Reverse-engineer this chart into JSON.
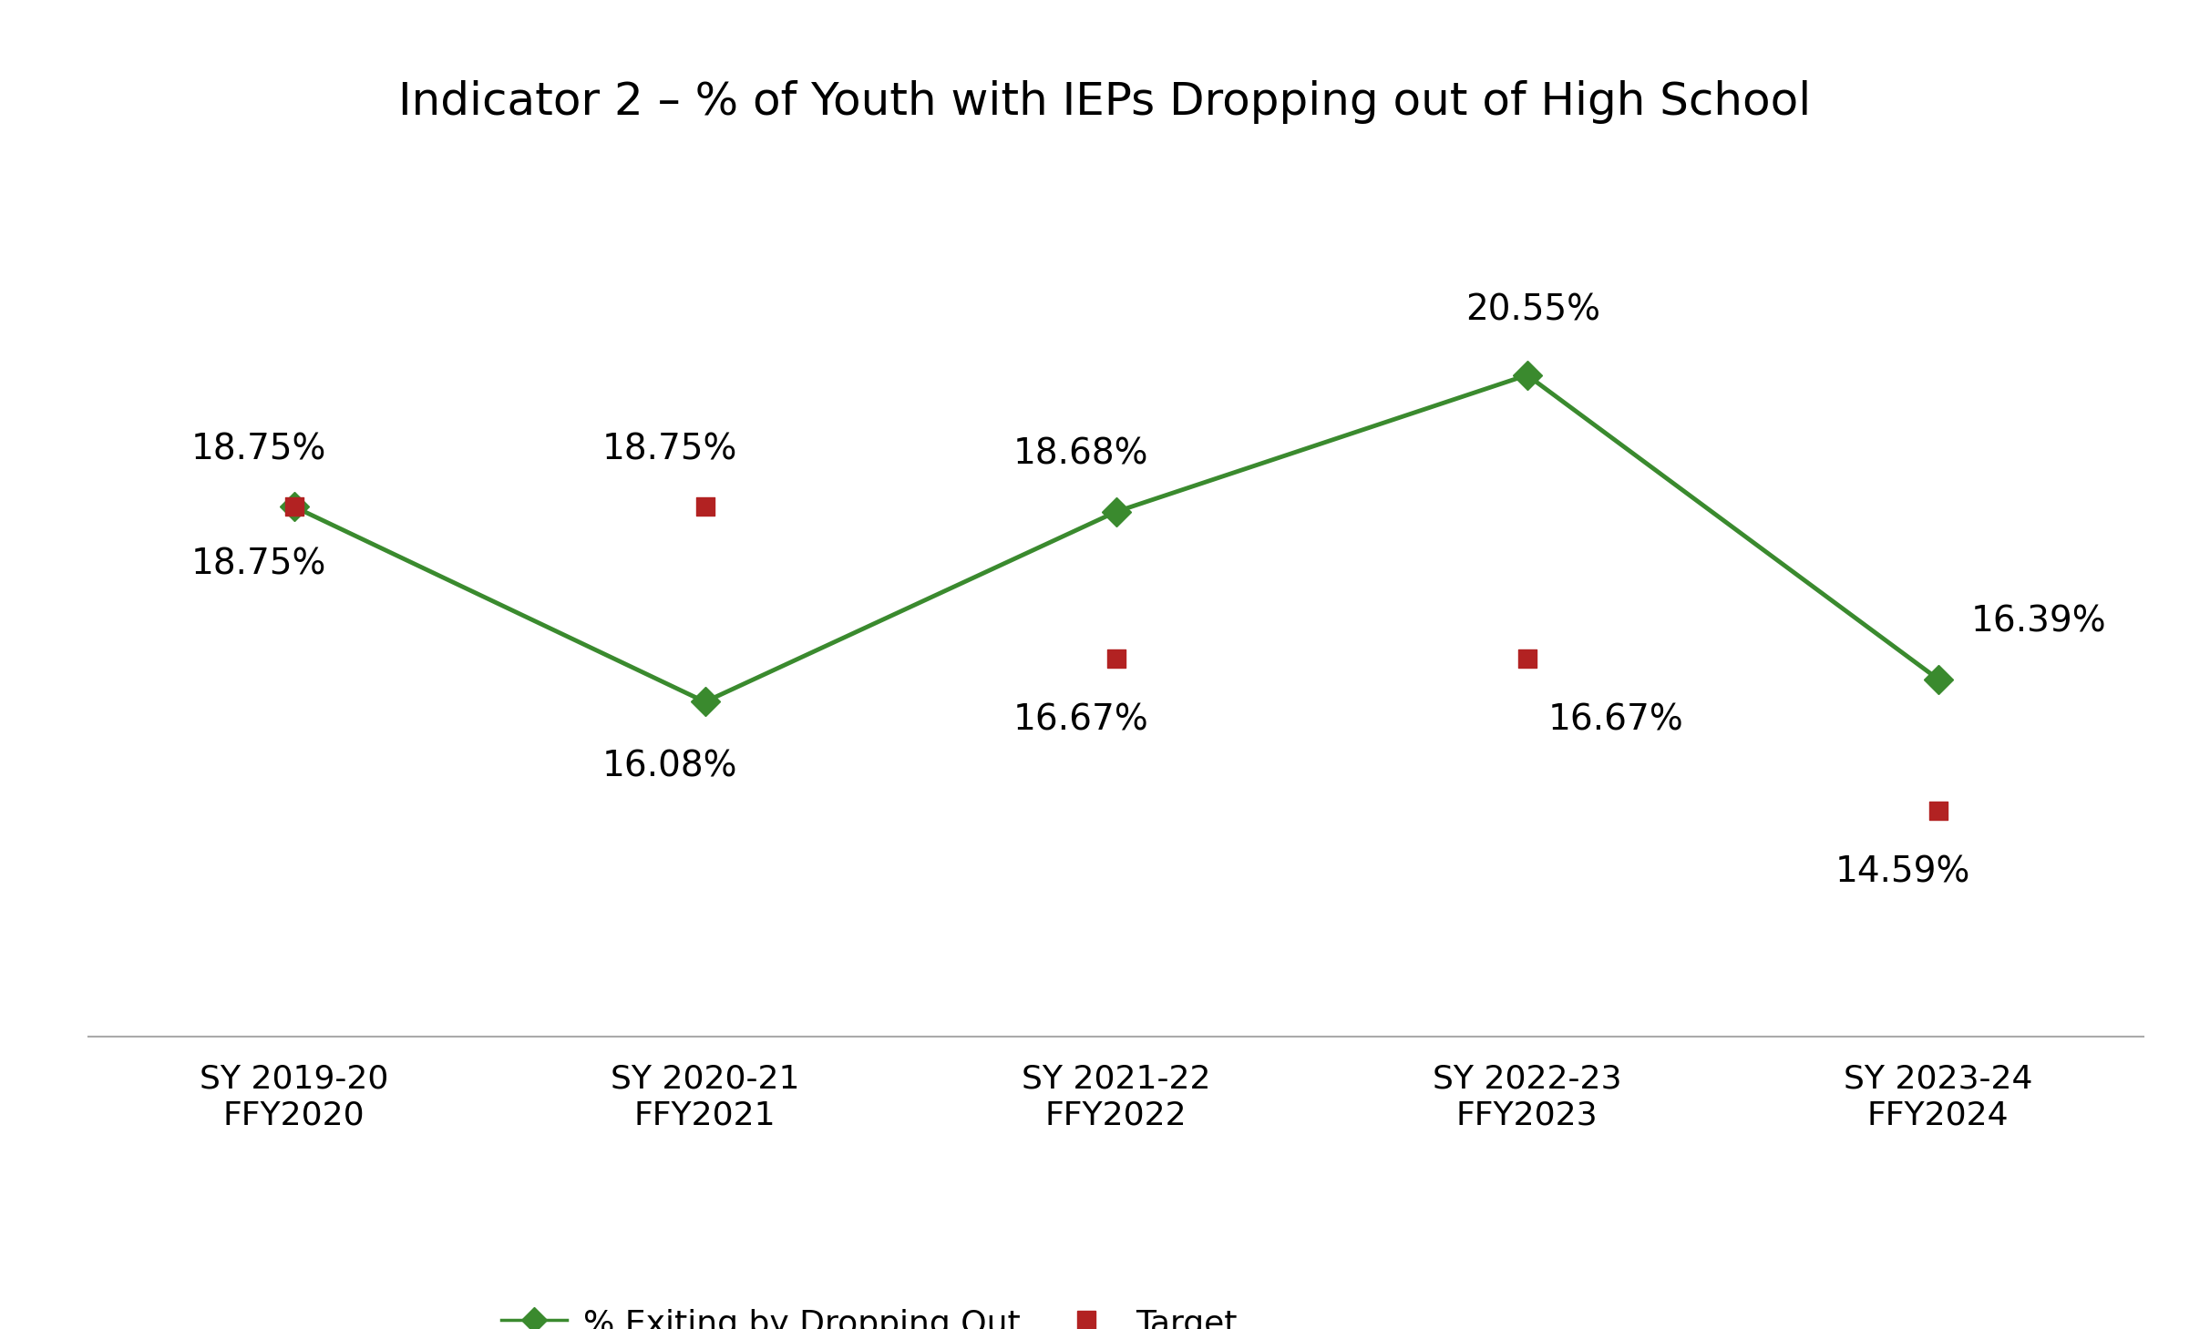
{
  "title": "Indicator 2 – % of Youth with IEPs Dropping out of High School",
  "x_labels": [
    "SY 2019-20\nFFY2020",
    "SY 2020-21\nFFY2021",
    "SY 2021-22\nFFY2022",
    "SY 2022-23\nFFY2023",
    "SY 2023-24\nFFY2024"
  ],
  "line_values": [
    18.75,
    16.08,
    18.68,
    20.55,
    16.39
  ],
  "target_values": [
    18.75,
    18.75,
    16.67,
    16.67,
    14.59
  ],
  "line_labels": [
    "18.75%",
    "16.08%",
    "18.68%",
    "20.55%",
    "16.39%"
  ],
  "target_labels": [
    "18.75%",
    "18.75%",
    "16.67%",
    "16.67%",
    "14.59%"
  ],
  "line_color_dark": "#3a8a2e",
  "target_color": "#B22222",
  "title_fontsize": 36,
  "label_fontsize": 28,
  "tick_fontsize": 26,
  "legend_fontsize": 26,
  "ylim_min": 11.5,
  "ylim_max": 23.5,
  "background_color": "#ffffff",
  "line_width": 3.5,
  "marker_size_line": 16,
  "marker_size_target": 200
}
